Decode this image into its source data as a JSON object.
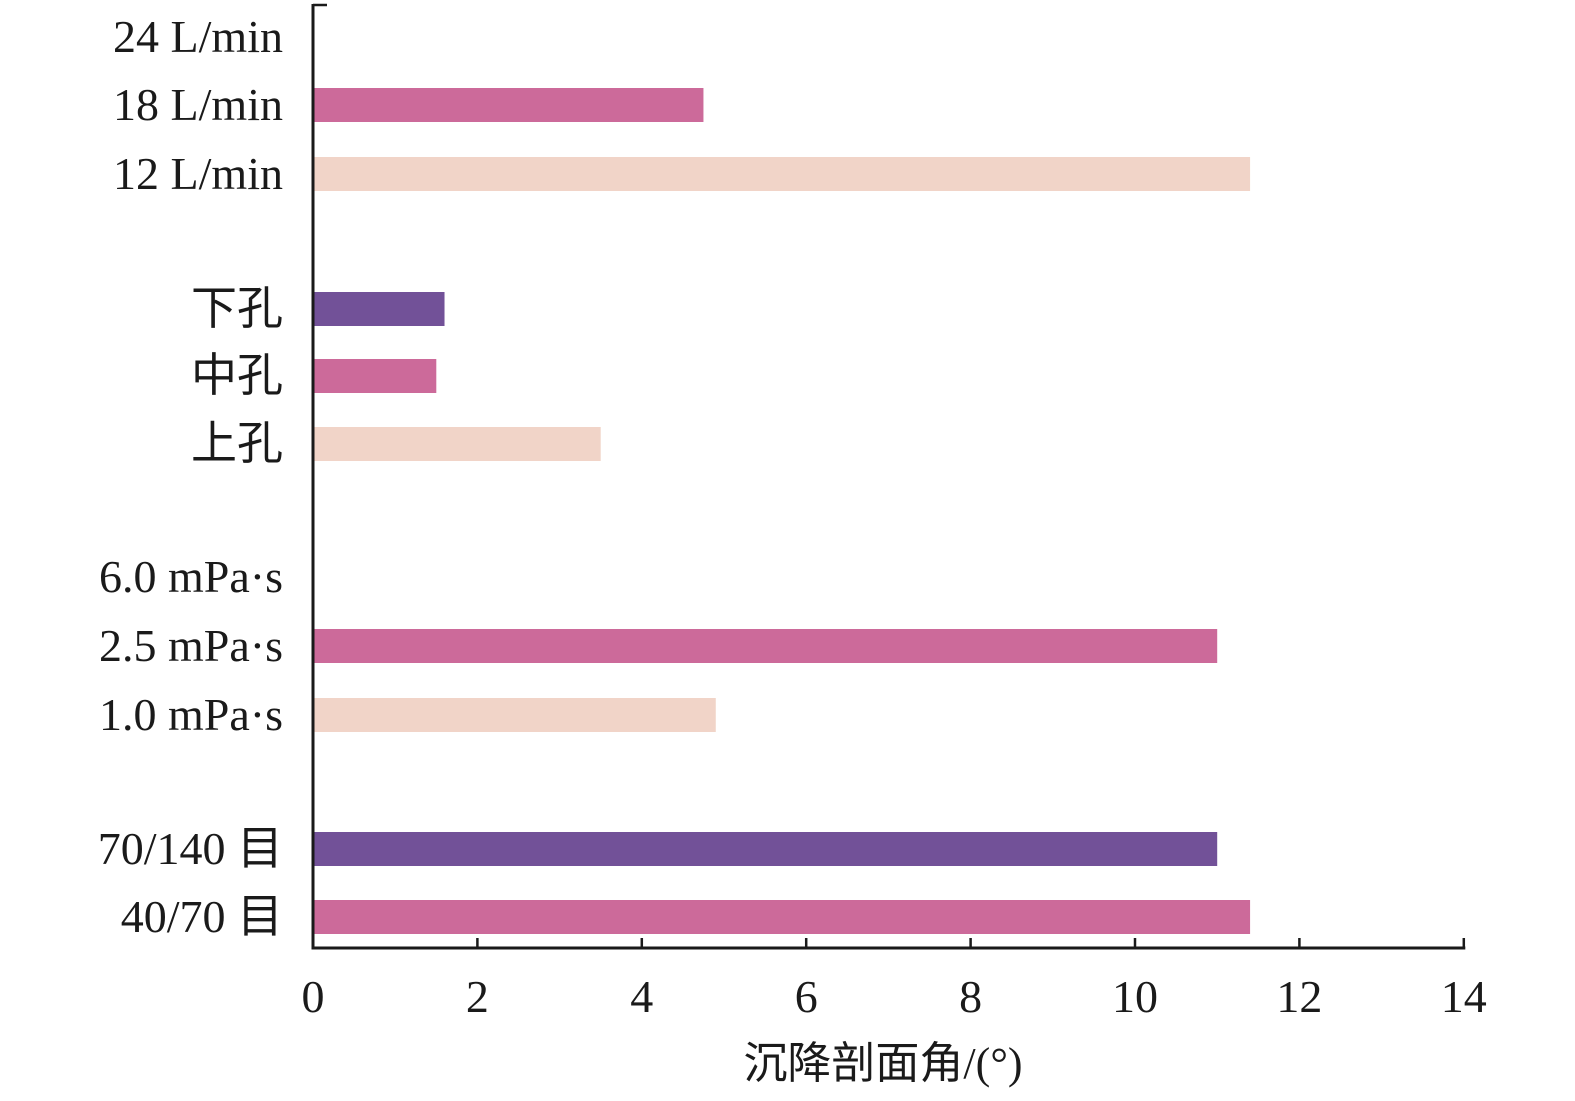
{
  "chart_data": {
    "type": "bar",
    "orientation": "horizontal",
    "xlabel": "沉降剖面角/(°)",
    "xlim": [
      0,
      14
    ],
    "xticks": [
      0,
      2,
      4,
      6,
      8,
      10,
      12,
      14
    ],
    "grid": false,
    "legend": "none",
    "categories": [
      "24 L/min",
      "18 L/min",
      "12 L/min",
      "下孔",
      "中孔",
      "上孔",
      "6.0 mPa·s",
      "2.5 mPa·s",
      "1.0 mPa·s",
      "70/140 目",
      "40/70 目"
    ],
    "bars": [
      {
        "category": "24 L/min",
        "value": 0,
        "color": "#ffffff"
      },
      {
        "category": "18 L/min",
        "value": 4.75,
        "color": "#cc6a9a"
      },
      {
        "category": "12 L/min",
        "value": 11.4,
        "color": "#f1d4c8"
      },
      {
        "category": "下孔",
        "value": 1.6,
        "color": "#725198"
      },
      {
        "category": "中孔",
        "value": 1.5,
        "color": "#cc6a9a"
      },
      {
        "category": "上孔",
        "value": 3.5,
        "color": "#f1d4c8"
      },
      {
        "category": "6.0 mPa·s",
        "value": 0,
        "color": "#ffffff"
      },
      {
        "category": "2.5 mPa·s",
        "value": 11.0,
        "color": "#cc6a9a"
      },
      {
        "category": "1.0 mPa·s",
        "value": 4.9,
        "color": "#f1d4c8"
      },
      {
        "category": "70/140 目",
        "value": 11.0,
        "color": "#725198"
      },
      {
        "category": "40/70 目",
        "value": 11.4,
        "color": "#cc6a9a"
      }
    ]
  }
}
